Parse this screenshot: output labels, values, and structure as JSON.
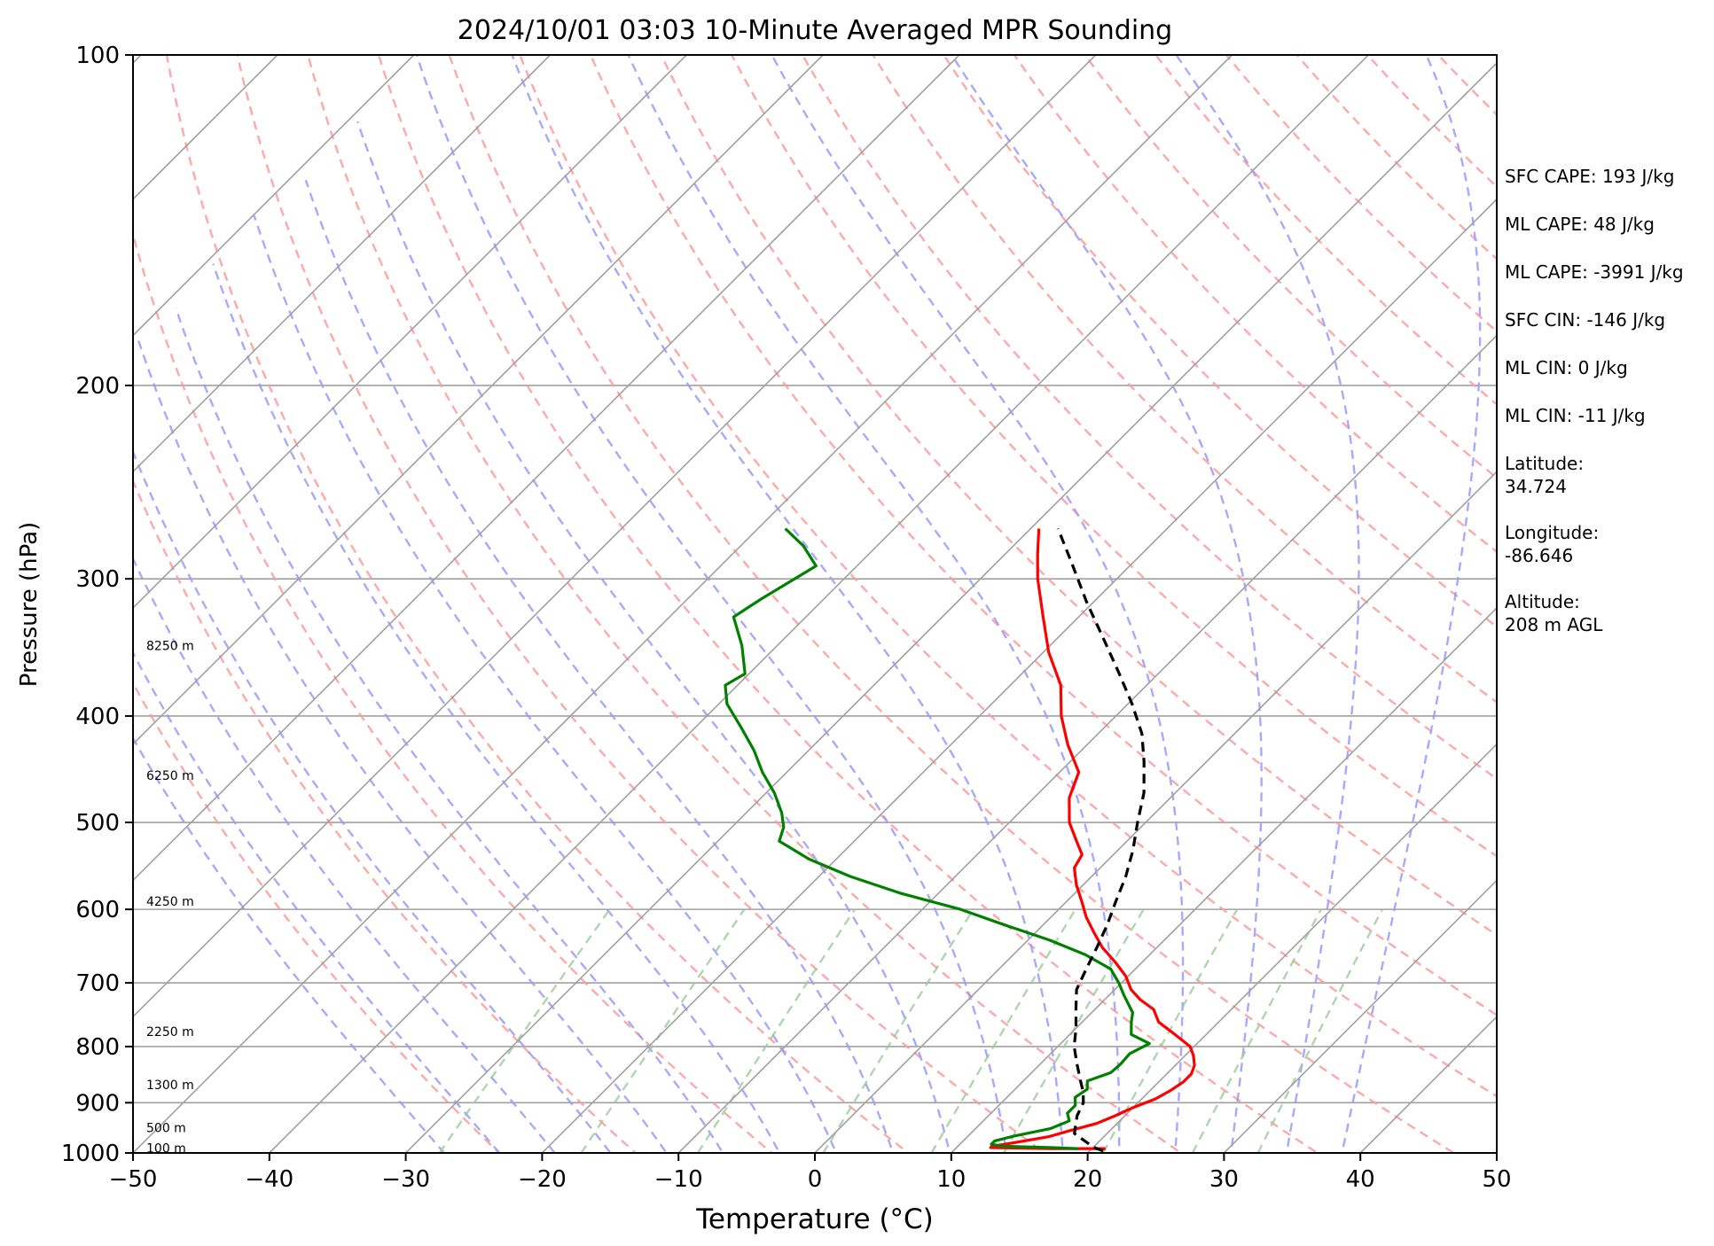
{
  "chart_data": {
    "type": "line",
    "subtype": "skew-t log-p sounding",
    "title": "2024/10/01 03:03 10-Minute Averaged MPR Sounding",
    "xlabel": "Temperature (°C)",
    "ylabel": "Pressure (hPa)",
    "xlim": [
      -50,
      50
    ],
    "ylim": [
      1000,
      100
    ],
    "y_scale": "log",
    "x_ticks": [
      "−50",
      "−40",
      "−30",
      "−20",
      "−10",
      "0",
      "10",
      "20",
      "30",
      "40",
      "50"
    ],
    "y_ticks": [
      {
        "value": 100,
        "label": "100"
      },
      {
        "value": 200,
        "label": "200"
      },
      {
        "value": 300,
        "label": "300"
      },
      {
        "value": 400,
        "label": "400"
      },
      {
        "value": 500,
        "label": "500"
      },
      {
        "value": 600,
        "label": "600"
      },
      {
        "value": 700,
        "label": "700"
      },
      {
        "value": 800,
        "label": "800"
      },
      {
        "value": 900,
        "label": "900"
      },
      {
        "value": 1000,
        "label": "1000"
      }
    ],
    "height_labels": [
      {
        "label": "8250 m",
        "pressure": 345
      },
      {
        "label": "6250 m",
        "pressure": 453
      },
      {
        "label": "4250 m",
        "pressure": 590
      },
      {
        "label": "2250 m",
        "pressure": 775
      },
      {
        "label": "1300 m",
        "pressure": 867
      },
      {
        "label": "500 m",
        "pressure": 948
      },
      {
        "label": "100 m",
        "pressure": 990
      }
    ],
    "grid": true,
    "colors": {
      "temperature": "#ff0000",
      "dewpoint": "#008000",
      "parcel": "#000000",
      "dry_adiabat": "#ff9999",
      "moist_adiabat": "#9999ff",
      "mixing_ratio": "#99cc99",
      "isotherm": "#a0a0a0",
      "isobar": "#a0a0a0"
    },
    "series": [
      {
        "key": "temperature",
        "line": "solid",
        "points": [
          [
            991,
            21.0
          ],
          [
            991,
            17.0
          ],
          [
            989,
            12.5
          ],
          [
            986,
            12.5
          ],
          [
            978,
            14.0
          ],
          [
            966,
            16.0
          ],
          [
            955,
            17.0
          ],
          [
            940,
            18.5
          ],
          [
            925,
            19.3
          ],
          [
            909,
            20.0
          ],
          [
            893,
            21.0
          ],
          [
            877,
            21.5
          ],
          [
            862,
            21.8
          ],
          [
            847,
            21.8
          ],
          [
            832,
            21.4
          ],
          [
            815,
            20.6
          ],
          [
            800,
            19.7
          ],
          [
            780,
            17.7
          ],
          [
            760,
            15.6
          ],
          [
            740,
            14.3
          ],
          [
            725,
            12.6
          ],
          [
            710,
            11.2
          ],
          [
            690,
            9.8
          ],
          [
            670,
            8.0
          ],
          [
            650,
            6.0
          ],
          [
            630,
            4.3
          ],
          [
            610,
            2.6
          ],
          [
            590,
            1.1
          ],
          [
            570,
            -0.5
          ],
          [
            550,
            -1.9
          ],
          [
            535,
            -2.3
          ],
          [
            520,
            -3.7
          ],
          [
            500,
            -5.6
          ],
          [
            475,
            -7.4
          ],
          [
            450,
            -8.6
          ],
          [
            425,
            -11.4
          ],
          [
            400,
            -14.0
          ],
          [
            375,
            -16.3
          ],
          [
            350,
            -19.6
          ],
          [
            325,
            -22.6
          ],
          [
            300,
            -25.8
          ],
          [
            285,
            -27.6
          ],
          [
            270,
            -29.4
          ]
        ]
      },
      {
        "key": "dewpoint",
        "line": "solid",
        "points": [
          [
            991,
            19.0
          ],
          [
            989,
            17.0
          ],
          [
            986,
            13.3
          ],
          [
            982,
            12.3
          ],
          [
            975,
            12.3
          ],
          [
            965,
            13.4
          ],
          [
            950,
            15.5
          ],
          [
            935,
            16.3
          ],
          [
            920,
            15.6
          ],
          [
            905,
            15.6
          ],
          [
            890,
            15.0
          ],
          [
            875,
            15.3
          ],
          [
            860,
            14.7
          ],
          [
            845,
            15.8
          ],
          [
            830,
            15.9
          ],
          [
            812,
            15.8
          ],
          [
            795,
            16.5
          ],
          [
            780,
            14.5
          ],
          [
            760,
            13.6
          ],
          [
            745,
            13.0
          ],
          [
            720,
            11.2
          ],
          [
            700,
            9.8
          ],
          [
            680,
            8.2
          ],
          [
            660,
            5.3
          ],
          [
            640,
            1.6
          ],
          [
            620,
            -2.8
          ],
          [
            600,
            -7.2
          ],
          [
            580,
            -12.8
          ],
          [
            560,
            -17.7
          ],
          [
            540,
            -22.0
          ],
          [
            520,
            -25.5
          ],
          [
            505,
            -26.2
          ],
          [
            490,
            -27.4
          ],
          [
            470,
            -29.4
          ],
          [
            450,
            -31.8
          ],
          [
            430,
            -34.0
          ],
          [
            410,
            -36.6
          ],
          [
            390,
            -39.4
          ],
          [
            375,
            -40.9
          ],
          [
            366,
            -40.3
          ],
          [
            345,
            -42.6
          ],
          [
            325,
            -45.3
          ],
          [
            313,
            -44.6
          ],
          [
            292,
            -43.0
          ],
          [
            280,
            -45.4
          ],
          [
            270,
            -48.0
          ]
        ]
      },
      {
        "key": "parcel",
        "line": "dashed",
        "points": [
          [
            996,
            21.0
          ],
          [
            988,
            20.0
          ],
          [
            960,
            17.6
          ],
          [
            925,
            16.5
          ],
          [
            900,
            16.0
          ],
          [
            880,
            15.2
          ],
          [
            860,
            14.2
          ],
          [
            830,
            12.7
          ],
          [
            800,
            11.2
          ],
          [
            770,
            10.0
          ],
          [
            740,
            8.6
          ],
          [
            710,
            7.2
          ],
          [
            680,
            6.4
          ],
          [
            650,
            5.6
          ],
          [
            620,
            4.7
          ],
          [
            590,
            3.6
          ],
          [
            560,
            2.5
          ],
          [
            530,
            1.1
          ],
          [
            500,
            -0.6
          ],
          [
            470,
            -2.3
          ],
          [
            440,
            -4.6
          ],
          [
            415,
            -6.8
          ],
          [
            390,
            -9.7
          ],
          [
            365,
            -13.0
          ],
          [
            340,
            -16.6
          ],
          [
            315,
            -20.5
          ],
          [
            290,
            -24.5
          ],
          [
            270,
            -28.0
          ]
        ]
      }
    ]
  },
  "info": {
    "sfc_cape": "SFC CAPE: 193 J/kg",
    "ml_cape_1": "ML CAPE: 48 J/kg",
    "ml_cape_2": "ML CAPE: -3991 J/kg",
    "sfc_cin": "SFC CIN: -146 J/kg",
    "ml_cin_1": "ML CIN: 0 J/kg",
    "ml_cin_2": "ML CIN: -11 J/kg",
    "latitude": "Latitude:\n34.724",
    "longitude": "Longitude:\n-86.646",
    "altitude": "Altitude:\n208 m AGL"
  }
}
